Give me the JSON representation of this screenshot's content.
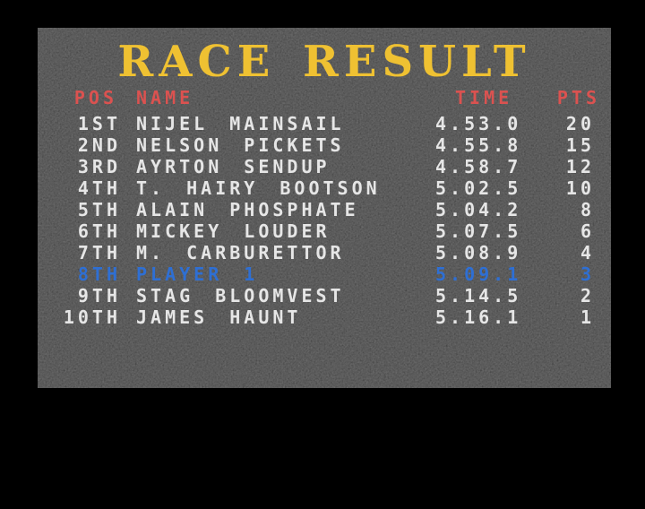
{
  "title": "RACE RESULT",
  "colors": {
    "background": "#000000",
    "panel_base": "#161616",
    "title": "#efc132",
    "header": "#db5250",
    "row_text": "#e6e6e6",
    "player_row": "#2e6fd4"
  },
  "table": {
    "headers": {
      "pos": "POS",
      "name": "NAME",
      "time": "TIME",
      "pts": "PTS"
    },
    "rows": [
      {
        "pos": "1ST",
        "name": "NIJEL MAINSAIL",
        "time": "4.53.0",
        "pts": "20",
        "highlight": false
      },
      {
        "pos": "2ND",
        "name": "NELSON PICKETS",
        "time": "4.55.8",
        "pts": "15",
        "highlight": false
      },
      {
        "pos": "3RD",
        "name": "AYRTON SENDUP",
        "time": "4.58.7",
        "pts": "12",
        "highlight": false
      },
      {
        "pos": "4TH",
        "name": "T. HAIRY BOOTSON",
        "time": "5.02.5",
        "pts": "10",
        "highlight": false
      },
      {
        "pos": "5TH",
        "name": "ALAIN PHOSPHATE",
        "time": "5.04.2",
        "pts": "8",
        "highlight": false
      },
      {
        "pos": "6TH",
        "name": "MICKEY LOUDER",
        "time": "5.07.5",
        "pts": "6",
        "highlight": false
      },
      {
        "pos": "7TH",
        "name": "M. CARBURETTOR",
        "time": "5.08.9",
        "pts": "4",
        "highlight": false
      },
      {
        "pos": "8TH",
        "name": "PLAYER 1",
        "time": "5.09.1",
        "pts": "3",
        "highlight": true
      },
      {
        "pos": "9TH",
        "name": "STAG BLOOMVEST",
        "time": "5.14.5",
        "pts": "2",
        "highlight": false
      },
      {
        "pos": "10TH",
        "name": "JAMES HAUNT",
        "time": "5.16.1",
        "pts": "1",
        "highlight": false
      }
    ]
  }
}
